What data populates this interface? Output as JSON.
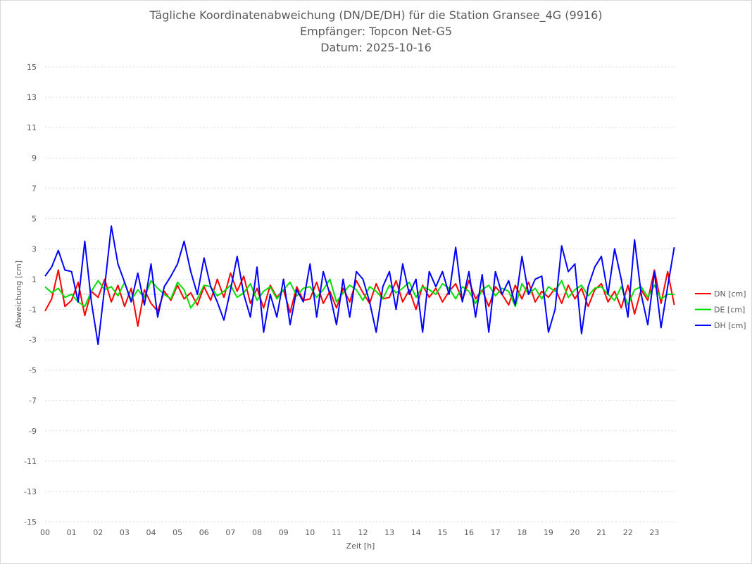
{
  "chart_data": {
    "type": "line",
    "title": [
      "Tägliche Koordinatenabweichung (DN/DE/DH) für die Station Gransee_4G (9916)",
      "Empfänger: Topcon Net-G5",
      "Datum: 2025-10-16"
    ],
    "xlabel": "Zeit [h]",
    "ylabel": "Abweichung [cm]",
    "xlim": [
      0,
      24
    ],
    "ylim": [
      -15,
      15
    ],
    "xticks": [
      "00",
      "01",
      "02",
      "03",
      "04",
      "05",
      "06",
      "07",
      "08",
      "09",
      "10",
      "11",
      "12",
      "13",
      "14",
      "15",
      "16",
      "17",
      "18",
      "19",
      "20",
      "21",
      "22",
      "23"
    ],
    "yticks": [
      15,
      13,
      11,
      9,
      7,
      5,
      3,
      1,
      -1,
      -3,
      -5,
      -7,
      -9,
      -11,
      -13,
      -15
    ],
    "grid": true,
    "legend": "right",
    "x_step_hours": 0.25,
    "series": [
      {
        "name": "DN [cm]",
        "color": "#ff0000",
        "values": [
          -1.1,
          -0.3,
          1.6,
          -0.8,
          -0.4,
          0.8,
          -1.4,
          0.2,
          -0.2,
          1.0,
          -0.5,
          0.6,
          -0.8,
          0.4,
          -2.1,
          0.3,
          -0.6,
          -1.1,
          0.2,
          -0.4,
          0.6,
          -0.3,
          0.1,
          -0.7,
          0.5,
          -0.4,
          1.0,
          -0.2,
          1.4,
          0.2,
          1.2,
          -0.6,
          0.4,
          -0.9,
          0.6,
          -0.2,
          0.3,
          -1.2,
          0.5,
          -0.4,
          -0.3,
          0.8,
          -0.6,
          0.2,
          -0.9,
          0.4,
          -0.5,
          0.9,
          0.1,
          -0.6,
          0.7,
          -0.3,
          -0.2,
          0.9,
          -0.5,
          0.3,
          -1.0,
          0.6,
          -0.2,
          0.4,
          -0.5,
          0.2,
          0.7,
          -0.4,
          0.9,
          -0.3,
          0.3,
          -0.8,
          0.5,
          0.0,
          -0.7,
          0.6,
          -0.3,
          0.8,
          -0.5,
          0.2,
          -0.2,
          0.4,
          -0.6,
          0.6,
          -0.3,
          0.4,
          -0.8,
          0.3,
          0.7,
          -0.5,
          0.2,
          -0.9,
          0.6,
          -1.3,
          0.3,
          -0.4,
          1.6,
          -0.6,
          1.5,
          -0.7
        ]
      },
      {
        "name": "DE [cm]",
        "color": "#00e000",
        "values": [
          0.5,
          0.1,
          0.4,
          -0.2,
          0.0,
          -0.5,
          -0.8,
          0.2,
          0.9,
          0.3,
          0.5,
          -0.1,
          0.8,
          -0.4,
          0.3,
          -0.2,
          0.9,
          0.4,
          0.0,
          -0.3,
          0.8,
          0.3,
          -0.9,
          -0.3,
          0.6,
          0.5,
          -0.1,
          0.2,
          0.6,
          -0.2,
          0.1,
          0.7,
          -0.4,
          0.2,
          0.5,
          -0.3,
          0.3,
          0.8,
          -0.1,
          0.4,
          0.5,
          -0.2,
          0.3,
          1.0,
          -0.5,
          0.1,
          0.6,
          0.3,
          -0.4,
          0.5,
          0.2,
          -0.3,
          0.6,
          0.1,
          0.4,
          0.8,
          -0.2,
          0.5,
          0.3,
          0.0,
          0.7,
          0.4,
          -0.3,
          0.5,
          0.2,
          -0.6,
          0.3,
          0.6,
          -0.1,
          0.4,
          0.2,
          -0.8,
          0.7,
          0.0,
          0.4,
          -0.3,
          0.5,
          0.2,
          0.9,
          -0.2,
          0.3,
          0.6,
          -0.1,
          0.4,
          0.5,
          0.0,
          -0.4,
          0.5,
          -0.7,
          0.3,
          0.5,
          -0.2,
          0.6,
          -0.3,
          0.0,
          0.0
        ]
      },
      {
        "name": "DH [cm]",
        "color": "#0000ff",
        "values": [
          1.2,
          1.8,
          2.9,
          1.6,
          1.5,
          -0.5,
          3.5,
          -0.5,
          -3.3,
          0.5,
          4.5,
          2.0,
          0.8,
          -0.5,
          1.4,
          -0.7,
          2.0,
          -1.5,
          0.5,
          1.2,
          2.0,
          3.5,
          1.5,
          0.0,
          2.4,
          0.5,
          -0.5,
          -1.7,
          0.3,
          2.5,
          0.0,
          -1.5,
          1.8,
          -2.5,
          0.0,
          -1.5,
          1.0,
          -2.0,
          0.3,
          -0.5,
          2.0,
          -1.5,
          1.5,
          0.0,
          -2.0,
          1.0,
          -1.5,
          1.5,
          1.0,
          -0.5,
          -2.5,
          0.5,
          1.5,
          -1.0,
          2.0,
          0.0,
          1.0,
          -2.5,
          1.5,
          0.5,
          1.5,
          0.0,
          3.1,
          -0.5,
          1.5,
          -1.5,
          1.3,
          -2.5,
          1.5,
          0.0,
          0.9,
          -0.7,
          2.5,
          0.0,
          1.0,
          1.2,
          -2.5,
          -1.0,
          3.2,
          1.5,
          2.0,
          -2.6,
          0.5,
          1.8,
          2.5,
          0.0,
          3.0,
          1.0,
          -1.5,
          3.6,
          0.0,
          -2.0,
          1.5,
          -2.2,
          0.5,
          3.1
        ]
      }
    ]
  }
}
